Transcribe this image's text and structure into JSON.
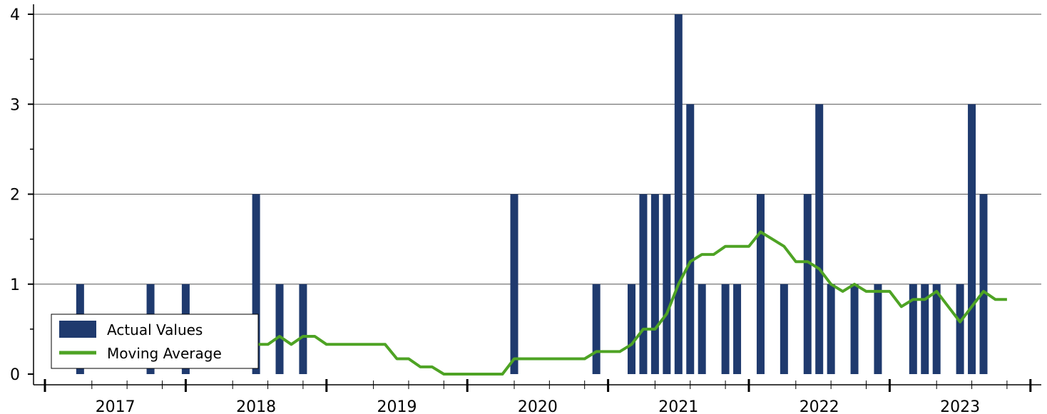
{
  "chart_data": {
    "type": "bar",
    "title": "",
    "xlabel": "",
    "ylabel": "",
    "ylim": [
      0,
      4
    ],
    "yticks": [
      0,
      1,
      2,
      3,
      4
    ],
    "grid": true,
    "legend_position": "bottom-left",
    "year_labels": [
      "2017",
      "2018",
      "2019",
      "2020",
      "2021",
      "2022",
      "2023"
    ],
    "start": "2016-07",
    "colors": {
      "bars": "#1f3a6e",
      "line": "#4ea324",
      "grid": "#555555"
    },
    "series": [
      {
        "name": "Actual Values",
        "kind": "bar",
        "points": [
          {
            "x": "2016-10",
            "y": 1
          },
          {
            "x": "2017-04",
            "y": 1
          },
          {
            "x": "2017-07",
            "y": 1
          },
          {
            "x": "2018-01",
            "y": 2
          },
          {
            "x": "2018-03",
            "y": 1
          },
          {
            "x": "2018-05",
            "y": 1
          },
          {
            "x": "2019-11",
            "y": 2
          },
          {
            "x": "2020-06",
            "y": 1
          },
          {
            "x": "2020-09",
            "y": 1
          },
          {
            "x": "2020-10",
            "y": 2
          },
          {
            "x": "2020-11",
            "y": 2
          },
          {
            "x": "2020-12",
            "y": 2
          },
          {
            "x": "2021-01",
            "y": 4
          },
          {
            "x": "2021-02",
            "y": 3
          },
          {
            "x": "2021-03",
            "y": 1
          },
          {
            "x": "2021-05",
            "y": 1
          },
          {
            "x": "2021-06",
            "y": 1
          },
          {
            "x": "2021-08",
            "y": 2
          },
          {
            "x": "2021-10",
            "y": 1
          },
          {
            "x": "2021-12",
            "y": 2
          },
          {
            "x": "2022-01",
            "y": 3
          },
          {
            "x": "2022-02",
            "y": 1
          },
          {
            "x": "2022-04",
            "y": 1
          },
          {
            "x": "2022-06",
            "y": 1
          },
          {
            "x": "2022-09",
            "y": 1
          },
          {
            "x": "2022-10",
            "y": 1
          },
          {
            "x": "2022-11",
            "y": 1
          },
          {
            "x": "2023-01",
            "y": 1
          },
          {
            "x": "2023-02",
            "y": 3
          },
          {
            "x": "2023-03",
            "y": 2
          }
        ]
      },
      {
        "name": "Moving Average",
        "kind": "line",
        "points": [
          {
            "x": "2017-02",
            "y": 0.08
          },
          {
            "x": "2017-03",
            "y": 0.08
          },
          {
            "x": "2017-11",
            "y": 0.25
          },
          {
            "x": "2017-12",
            "y": 0.25
          },
          {
            "x": "2018-01",
            "y": 0.33
          },
          {
            "x": "2018-02",
            "y": 0.33
          },
          {
            "x": "2018-03",
            "y": 0.42
          },
          {
            "x": "2018-04",
            "y": 0.33
          },
          {
            "x": "2018-05",
            "y": 0.42
          },
          {
            "x": "2018-06",
            "y": 0.42
          },
          {
            "x": "2018-07",
            "y": 0.33
          },
          {
            "x": "2018-08",
            "y": 0.33
          },
          {
            "x": "2018-09",
            "y": 0.33
          },
          {
            "x": "2018-10",
            "y": 0.33
          },
          {
            "x": "2018-11",
            "y": 0.33
          },
          {
            "x": "2018-12",
            "y": 0.33
          },
          {
            "x": "2019-01",
            "y": 0.17
          },
          {
            "x": "2019-02",
            "y": 0.17
          },
          {
            "x": "2019-03",
            "y": 0.08
          },
          {
            "x": "2019-04",
            "y": 0.08
          },
          {
            "x": "2019-05",
            "y": 0.0
          },
          {
            "x": "2019-06",
            "y": 0.0
          },
          {
            "x": "2019-07",
            "y": 0.0
          },
          {
            "x": "2019-08",
            "y": 0.0
          },
          {
            "x": "2019-09",
            "y": 0.0
          },
          {
            "x": "2019-10",
            "y": 0.0
          },
          {
            "x": "2019-11",
            "y": 0.17
          },
          {
            "x": "2019-12",
            "y": 0.17
          },
          {
            "x": "2020-01",
            "y": 0.17
          },
          {
            "x": "2020-02",
            "y": 0.17
          },
          {
            "x": "2020-03",
            "y": 0.17
          },
          {
            "x": "2020-04",
            "y": 0.17
          },
          {
            "x": "2020-05",
            "y": 0.17
          },
          {
            "x": "2020-06",
            "y": 0.25
          },
          {
            "x": "2020-07",
            "y": 0.25
          },
          {
            "x": "2020-08",
            "y": 0.25
          },
          {
            "x": "2020-09",
            "y": 0.33
          },
          {
            "x": "2020-10",
            "y": 0.5
          },
          {
            "x": "2020-11",
            "y": 0.5
          },
          {
            "x": "2020-12",
            "y": 0.67
          },
          {
            "x": "2021-01",
            "y": 1.0
          },
          {
            "x": "2021-02",
            "y": 1.25
          },
          {
            "x": "2021-03",
            "y": 1.33
          },
          {
            "x": "2021-04",
            "y": 1.33
          },
          {
            "x": "2021-05",
            "y": 1.42
          },
          {
            "x": "2021-06",
            "y": 1.42
          },
          {
            "x": "2021-07",
            "y": 1.42
          },
          {
            "x": "2021-08",
            "y": 1.58
          },
          {
            "x": "2021-09",
            "y": 1.5
          },
          {
            "x": "2021-10",
            "y": 1.42
          },
          {
            "x": "2021-11",
            "y": 1.25
          },
          {
            "x": "2021-12",
            "y": 1.25
          },
          {
            "x": "2022-01",
            "y": 1.17
          },
          {
            "x": "2022-02",
            "y": 1.0
          },
          {
            "x": "2022-03",
            "y": 0.92
          },
          {
            "x": "2022-04",
            "y": 1.0
          },
          {
            "x": "2022-05",
            "y": 0.92
          },
          {
            "x": "2022-06",
            "y": 0.92
          },
          {
            "x": "2022-07",
            "y": 0.92
          },
          {
            "x": "2022-08",
            "y": 0.75
          },
          {
            "x": "2022-09",
            "y": 0.83
          },
          {
            "x": "2022-10",
            "y": 0.83
          },
          {
            "x": "2022-11",
            "y": 0.92
          },
          {
            "x": "2022-12",
            "y": 0.75
          },
          {
            "x": "2023-01",
            "y": 0.58
          },
          {
            "x": "2023-02",
            "y": 0.75
          },
          {
            "x": "2023-03",
            "y": 0.92
          },
          {
            "x": "2023-04",
            "y": 0.83
          },
          {
            "x": "2023-05",
            "y": 0.83
          }
        ]
      }
    ]
  }
}
